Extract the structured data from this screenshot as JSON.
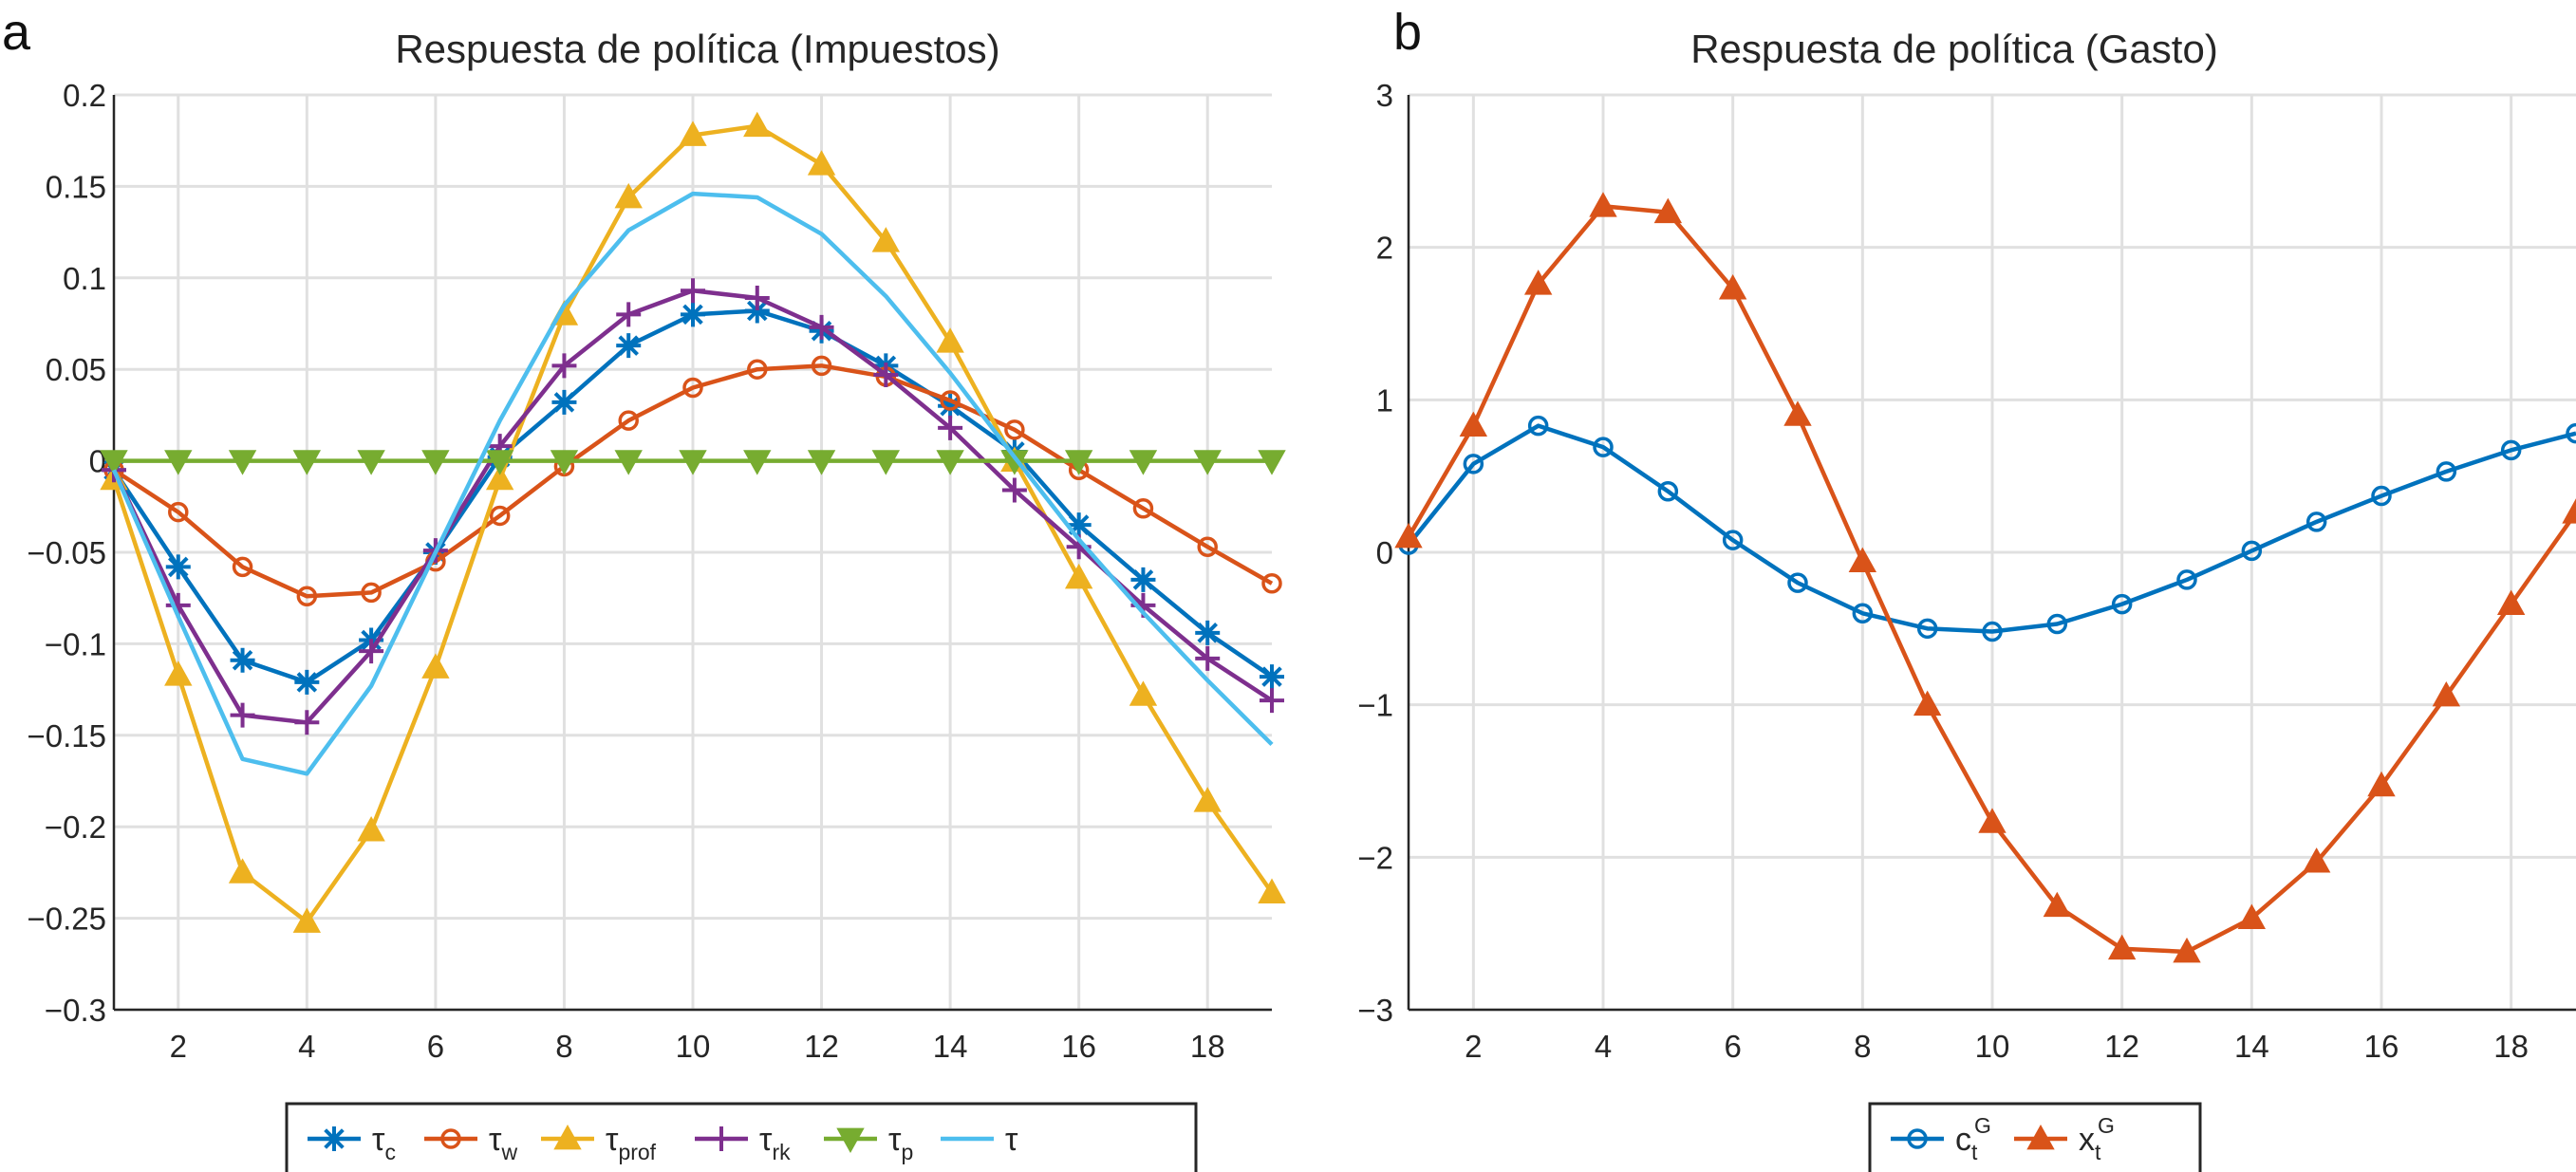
{
  "chart_data": [
    {
      "type": "line",
      "panel_label": "a",
      "title": "Respuesta de política (Impuestos)",
      "xlabel": "",
      "ylabel": "",
      "xlim": [
        1,
        19
      ],
      "ylim": [
        -0.3,
        0.2
      ],
      "xticks": [
        2,
        4,
        6,
        8,
        10,
        12,
        14,
        16,
        18
      ],
      "xtick_labels": [
        "2",
        "4",
        "6",
        "8",
        "10",
        "12",
        "14",
        "16",
        "18"
      ],
      "yticks": [
        0.2,
        0.15,
        0.1,
        0.05,
        0,
        -0.05,
        -0.1,
        -0.15,
        -0.2,
        -0.25,
        -0.3
      ],
      "ytick_labels": [
        "0.2",
        "0.15",
        "0.1",
        "0.05",
        "0",
        "−0.05",
        "−0.1",
        "−0.15",
        "−0.2",
        "−0.25",
        "−0.3"
      ],
      "grid": true,
      "legend_position": "bottom-outside",
      "x": [
        1,
        2,
        3,
        4,
        5,
        6,
        7,
        8,
        9,
        10,
        11,
        12,
        13,
        14,
        15,
        16,
        17,
        18,
        19
      ],
      "series": [
        {
          "name": "τc",
          "base": "τ",
          "sub": "c",
          "color": "#0072BD",
          "marker": "asterisk",
          "values": [
            -0.005,
            -0.058,
            -0.109,
            -0.121,
            -0.098,
            -0.05,
            0.002,
            0.032,
            0.063,
            0.08,
            0.082,
            0.071,
            0.052,
            0.03,
            0.005,
            -0.035,
            -0.065,
            -0.094,
            -0.118
          ]
        },
        {
          "name": "τw",
          "base": "τ",
          "sub": "w",
          "color": "#D95319",
          "marker": "circle",
          "values": [
            -0.005,
            -0.028,
            -0.058,
            -0.074,
            -0.072,
            -0.055,
            -0.03,
            -0.003,
            0.022,
            0.04,
            0.05,
            0.052,
            0.046,
            0.033,
            0.017,
            -0.005,
            -0.026,
            -0.047,
            -0.067
          ]
        },
        {
          "name": "τprof",
          "base": "τ",
          "sub": "prof",
          "color": "#EDB120",
          "marker": "triangle-up",
          "values": [
            -0.01,
            -0.117,
            -0.225,
            -0.252,
            -0.202,
            -0.113,
            -0.01,
            0.08,
            0.144,
            0.178,
            0.183,
            0.162,
            0.12,
            0.065,
            0.0,
            -0.064,
            -0.128,
            -0.186,
            -0.236
          ]
        },
        {
          "name": "τrk",
          "base": "τ",
          "sub": "rk",
          "color": "#7E2F8E",
          "marker": "plus",
          "values": [
            -0.005,
            -0.079,
            -0.139,
            -0.143,
            -0.104,
            -0.049,
            0.008,
            0.052,
            0.08,
            0.093,
            0.089,
            0.073,
            0.047,
            0.018,
            -0.016,
            -0.047,
            -0.079,
            -0.108,
            -0.131
          ]
        },
        {
          "name": "τp",
          "base": "τ",
          "sub": "p",
          "color": "#77AC30",
          "marker": "triangle-down",
          "values": [
            0.0,
            0.0,
            0.0,
            0.0,
            0.0,
            0.0,
            0.0,
            0.0,
            0.0,
            0.0,
            0.0,
            0.0,
            0.0,
            0.0,
            0.0,
            0.0,
            0.0,
            0.0,
            0.0
          ]
        },
        {
          "name": "τ",
          "base": "τ",
          "sub": "",
          "color": "#4DBEEE",
          "marker": "none",
          "values": [
            -0.005,
            -0.085,
            -0.163,
            -0.171,
            -0.123,
            -0.05,
            0.022,
            0.085,
            0.126,
            0.146,
            0.144,
            0.124,
            0.09,
            0.048,
            0.002,
            -0.043,
            -0.083,
            -0.12,
            -0.155
          ]
        }
      ]
    },
    {
      "type": "line",
      "panel_label": "b",
      "title": "Respuesta de política (Gasto)",
      "xlabel": "",
      "ylabel": "",
      "xlim": [
        1,
        19
      ],
      "ylim": [
        -3,
        3
      ],
      "xticks": [
        2,
        4,
        6,
        8,
        10,
        12,
        14,
        16,
        18
      ],
      "xtick_labels": [
        "2",
        "4",
        "6",
        "8",
        "10",
        "12",
        "14",
        "16",
        "18"
      ],
      "yticks": [
        3,
        2,
        1,
        0,
        -1,
        -2,
        -3
      ],
      "ytick_labels": [
        "3",
        "2",
        "1",
        "0",
        "−1",
        "−2",
        "−3"
      ],
      "grid": true,
      "legend_position": "bottom-outside",
      "x": [
        1,
        2,
        3,
        4,
        5,
        6,
        7,
        8,
        9,
        10,
        11,
        12,
        13,
        14,
        15,
        16,
        17,
        18,
        19
      ],
      "series": [
        {
          "name": "ctG",
          "base": "c",
          "sub": "t",
          "sup": "G",
          "color": "#0072BD",
          "marker": "circle",
          "values": [
            0.05,
            0.58,
            0.83,
            0.69,
            0.4,
            0.08,
            -0.2,
            -0.4,
            -0.5,
            -0.52,
            -0.47,
            -0.34,
            -0.18,
            0.01,
            0.2,
            0.37,
            0.53,
            0.67,
            0.78
          ]
        },
        {
          "name": "xtG",
          "base": "x",
          "sub": "t",
          "sup": "G",
          "color": "#D95319",
          "marker": "triangle-up",
          "values": [
            0.1,
            0.83,
            1.76,
            2.27,
            2.23,
            1.73,
            0.9,
            -0.06,
            -1.0,
            -1.77,
            -2.32,
            -2.6,
            -2.62,
            -2.4,
            -2.03,
            -1.53,
            -0.94,
            -0.34,
            0.26
          ]
        }
      ]
    }
  ]
}
